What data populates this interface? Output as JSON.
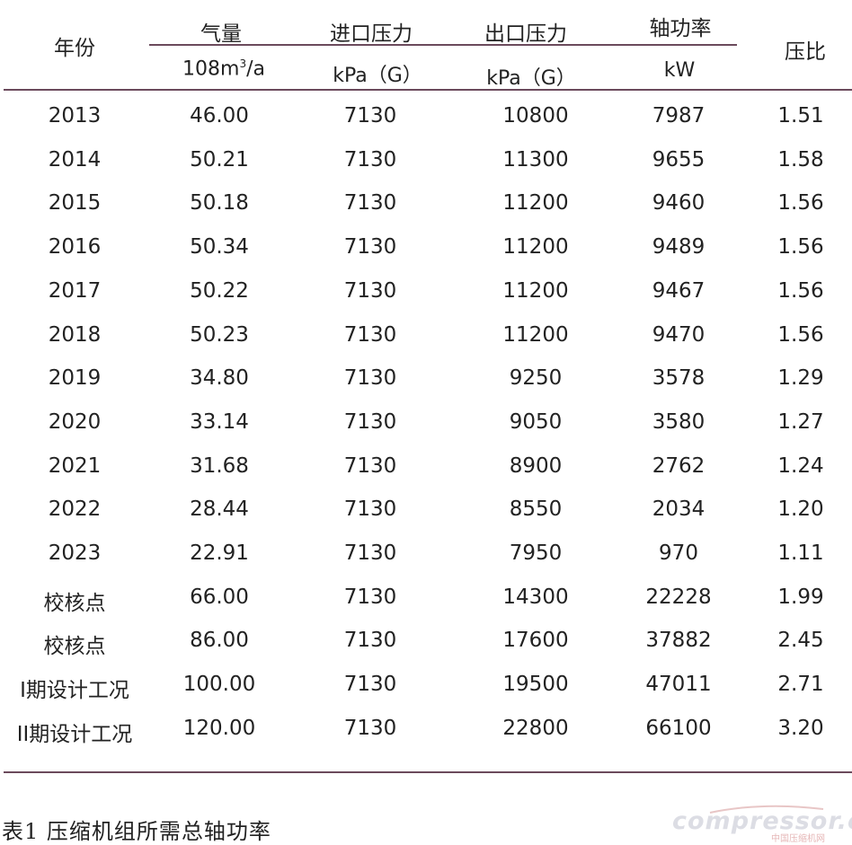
{
  "table": {
    "headers": {
      "year": "年份",
      "flow": "气量",
      "inlet": "进口压力",
      "outlet": "出口压力",
      "power": "轴功率",
      "ratio": "压比"
    },
    "units": {
      "flow": "108m",
      "flow_sup": "3",
      "flow_tail": "/a",
      "inlet": "kPa（G）",
      "outlet": "kPa（G）",
      "power": "kW"
    },
    "rows": [
      [
        "2013",
        "46.00",
        "7130",
        "10800",
        "7987",
        "1.51"
      ],
      [
        "2014",
        "50.21",
        "7130",
        "11300",
        "9655",
        "1.58"
      ],
      [
        "2015",
        "50.18",
        "7130",
        "11200",
        "9460",
        "1.56"
      ],
      [
        "2016",
        "50.34",
        "7130",
        "11200",
        "9489",
        "1.56"
      ],
      [
        "2017",
        "50.22",
        "7130",
        "11200",
        "9467",
        "1.56"
      ],
      [
        "2018",
        "50.23",
        "7130",
        "11200",
        "9470",
        "1.56"
      ],
      [
        "2019",
        "34.80",
        "7130",
        "9250",
        "3578",
        "1.29"
      ],
      [
        "2020",
        "33.14",
        "7130",
        "9050",
        "3580",
        "1.27"
      ],
      [
        "2021",
        "31.68",
        "7130",
        "8900",
        "2762",
        "1.24"
      ],
      [
        "2022",
        "28.44",
        "7130",
        "8550",
        "2034",
        "1.20"
      ],
      [
        "2023",
        "22.91",
        "7130",
        "7950",
        "970",
        "1.11"
      ],
      [
        "校核点",
        "66.00",
        "7130",
        "14300",
        "22228",
        "1.99"
      ],
      [
        "校核点",
        "86.00",
        "7130",
        "17600",
        "37882",
        "2.45"
      ],
      [
        "I期设计工况",
        "100.00",
        "7130",
        "19500",
        "47011",
        "2.71"
      ],
      [
        "II期设计工况",
        "120.00",
        "7130",
        "22800",
        "66100",
        "3.20"
      ]
    ]
  },
  "caption": "表1  压缩机组所需总轴功率",
  "watermark": {
    "text": "compressor.cn",
    "sub": "中国压缩机网"
  },
  "colors": {
    "rule": "#6b4a5c",
    "text": "#222222"
  }
}
